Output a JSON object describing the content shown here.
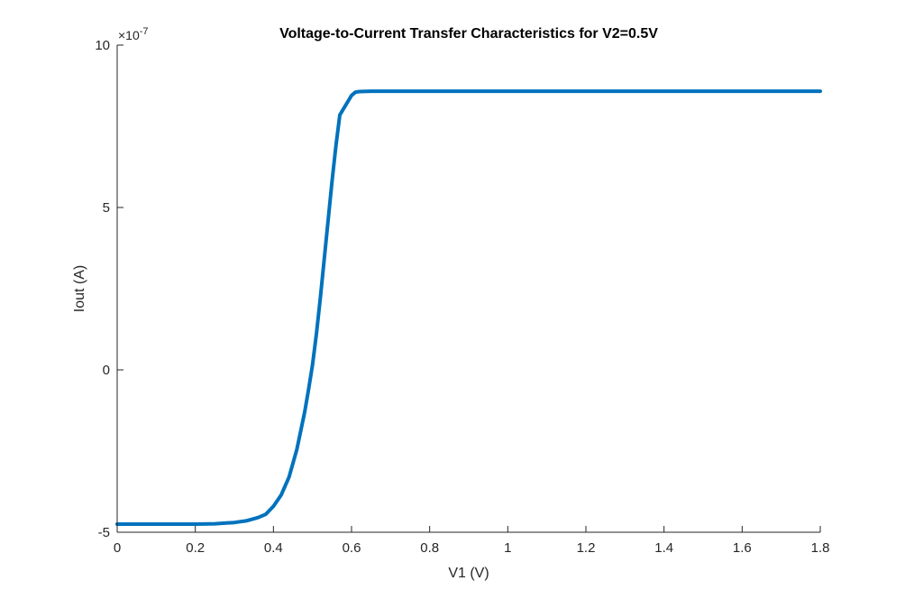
{
  "chart_data": {
    "type": "line",
    "title": "Voltage-to-Current Transfer Characteristics for V2=0.5V",
    "xlabel": "V1 (V)",
    "ylabel": "Iout (A)",
    "xlim": [
      0,
      1.8
    ],
    "ylim": [
      -5e-07,
      1e-06
    ],
    "x_ticks": [
      0,
      0.2,
      0.4,
      0.6,
      0.8,
      1.0,
      1.2,
      1.4,
      1.6,
      1.8
    ],
    "x_tick_labels": [
      "0",
      "0.2",
      "0.4",
      "0.6",
      "0.8",
      "1",
      "1.2",
      "1.4",
      "1.6",
      "1.8"
    ],
    "y_ticks": [
      -5e-07,
      0,
      5e-07,
      1e-06
    ],
    "y_tick_labels": [
      "-5",
      "0",
      "5",
      "10"
    ],
    "y_exponent_base": "×10",
    "y_exponent_power": "-7",
    "grid": false,
    "legend": "none",
    "series": [
      {
        "color": "#0072BD",
        "x": [
          0,
          0.05,
          0.1,
          0.15,
          0.2,
          0.25,
          0.3,
          0.33,
          0.36,
          0.38,
          0.4,
          0.42,
          0.44,
          0.46,
          0.48,
          0.49,
          0.5,
          0.51,
          0.52,
          0.53,
          0.54,
          0.55,
          0.56,
          0.57,
          0.575,
          0.58,
          0.59,
          0.6,
          0.61,
          0.62,
          0.65,
          0.7,
          0.8,
          1.0,
          1.2,
          1.4,
          1.6,
          1.8
        ],
        "y": [
          -4.75e-07,
          -4.75e-07,
          -4.75e-07,
          -4.75e-07,
          -4.75e-07,
          -4.74e-07,
          -4.7e-07,
          -4.65e-07,
          -4.55e-07,
          -4.45e-07,
          -4.2e-07,
          -3.85e-07,
          -3.3e-07,
          -2.45e-07,
          -1.3e-07,
          -6e-08,
          1.5e-08,
          1.1e-07,
          2.2e-07,
          3.4e-07,
          4.6e-07,
          5.8e-07,
          6.9e-07,
          7.85e-07,
          7.95e-07,
          8.05e-07,
          8.25e-07,
          8.45e-07,
          8.55e-07,
          8.57e-07,
          8.58e-07,
          8.58e-07,
          8.58e-07,
          8.58e-07,
          8.58e-07,
          8.58e-07,
          8.58e-07,
          8.58e-07
        ]
      }
    ]
  }
}
